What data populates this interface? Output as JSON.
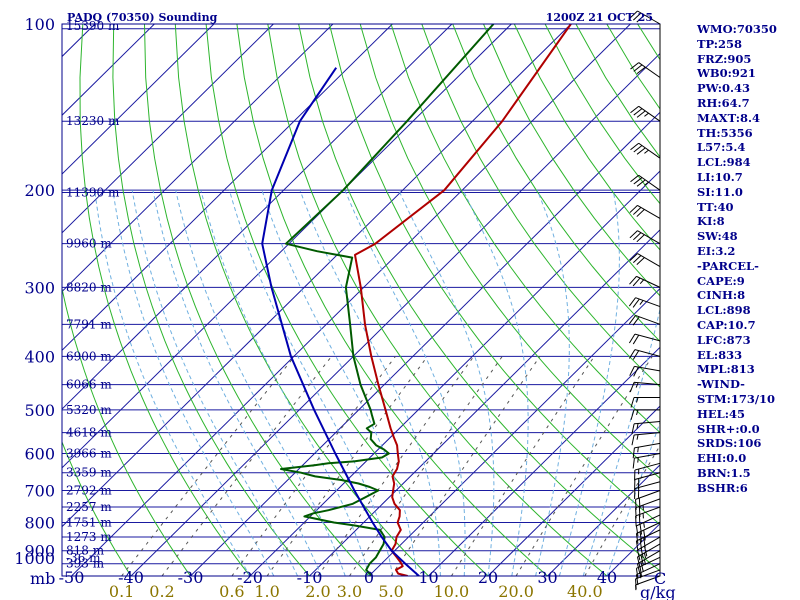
{
  "header": {
    "title": "PADQ (70350) Sounding",
    "time": "1200Z 21 OCT 25"
  },
  "indices": [
    "WMO:70350",
    "TP:258",
    "FRZ:905",
    "WB0:921",
    "PW:0.43",
    "RH:64.7",
    "MAXT:8.4",
    "TH:5356",
    "L57:5.4",
    "LCL:984",
    "LI:10.7",
    "SI:11.0",
    "TT:40",
    "KI:8",
    "SW:48",
    "EI:3.2",
    "-PARCEL-",
    "CAPE:9",
    "CINH:8",
    "LCL:898",
    "CAP:10.7",
    "LFC:873",
    "EL:833",
    "MPL:813",
    "-WIND-",
    "STM:173/10",
    "HEL:45",
    "SHR+:0.0",
    "SRDS:106",
    "EHI:0.0",
    "BRN:1.5",
    "BSHR:6"
  ],
  "colors": {
    "frame": "#00008b",
    "isobar": "#1a1aa0",
    "isotherm": "#1a1aa0",
    "dry_adiabat": "#2db52d",
    "moist_adiabat": "#70b0e0",
    "mixing_ratio": "#555555",
    "temperature": "#b00000",
    "dewpoint": "#005a00",
    "parcel": "#0000b0",
    "wind_barb": "#000000",
    "mixing_ratio_labels": "#8b7500"
  },
  "chart_data": {
    "type": "line",
    "title": "PADQ (70350) Sounding",
    "subtitle": "1200Z 21 OCT 25",
    "pressure_unit": "mb",
    "temperature_unit": "C",
    "mixing_ratio_unit": "g/kg",
    "pressure_range": [
      1000,
      100
    ],
    "temperature_range": [
      -50,
      50
    ],
    "log_pressure_axis": true,
    "pressure_ticks": [
      {
        "p": 100,
        "label": "100"
      },
      {
        "p": 200,
        "label": "200"
      },
      {
        "p": 300,
        "label": "300"
      },
      {
        "p": 400,
        "label": "400"
      },
      {
        "p": 500,
        "label": "500"
      },
      {
        "p": 600,
        "label": "600"
      },
      {
        "p": 700,
        "label": "700"
      },
      {
        "p": 800,
        "label": "800"
      },
      {
        "p": 900,
        "label": "900"
      },
      {
        "p": 1000,
        "label": "1000"
      }
    ],
    "height_ticks": [
      {
        "p": 102,
        "label": "15390 m"
      },
      {
        "p": 150,
        "label": "13230 m"
      },
      {
        "p": 202,
        "label": "11390 m"
      },
      {
        "p": 250,
        "label": "9960 m"
      },
      {
        "p": 300,
        "label": "8820 m"
      },
      {
        "p": 350,
        "label": "7791 m"
      },
      {
        "p": 400,
        "label": "6900 m"
      },
      {
        "p": 450,
        "label": "6066 m"
      },
      {
        "p": 500,
        "label": "5320 m"
      },
      {
        "p": 550,
        "label": "4618 m"
      },
      {
        "p": 600,
        "label": "3966 m"
      },
      {
        "p": 650,
        "label": "3359 m"
      },
      {
        "p": 700,
        "label": "2792 m"
      },
      {
        "p": 750,
        "label": "2257 m"
      },
      {
        "p": 800,
        "label": "1751 m"
      },
      {
        "p": 850,
        "label": "1273 m"
      },
      {
        "p": 900,
        "label": "818 m"
      },
      {
        "p": 950,
        "label": "393 m"
      },
      {
        "p": 1000,
        "label": "-36 m"
      }
    ],
    "temperature_ticks": [
      {
        "t": -50,
        "label": "-50"
      },
      {
        "t": -40,
        "label": "-40"
      },
      {
        "t": -30,
        "label": "-30"
      },
      {
        "t": -20,
        "label": "-20"
      },
      {
        "t": -10,
        "label": "-10"
      },
      {
        "t": 0,
        "label": "0"
      },
      {
        "t": 10,
        "label": "10"
      },
      {
        "t": 20,
        "label": "20"
      },
      {
        "t": 30,
        "label": "30"
      },
      {
        "t": 40,
        "label": "40"
      }
    ],
    "mixing_ratio_ticks": [
      {
        "w": 0.1,
        "label": "0.1"
      },
      {
        "w": 0.2,
        "label": "0.2"
      },
      {
        "w": 0.6,
        "label": "0.6"
      },
      {
        "w": 1.0,
        "label": "1.0"
      },
      {
        "w": 2.0,
        "label": "2.0"
      },
      {
        "w": 3.0,
        "label": "3.0"
      },
      {
        "w": 5.0,
        "label": "5.0"
      },
      {
        "w": 10.0,
        "label": "10.0"
      },
      {
        "w": 20.0,
        "label": "20.0"
      },
      {
        "w": 40.0,
        "label": "40.0"
      }
    ],
    "series": [
      {
        "name": "Temperature",
        "color": "#b00000",
        "points": [
          [
            1000,
            6.5
          ],
          [
            990,
            4.5
          ],
          [
            975,
            3.5
          ],
          [
            960,
            4.0
          ],
          [
            945,
            3.0
          ],
          [
            925,
            1.5
          ],
          [
            900,
            -0.5
          ],
          [
            875,
            -1.0
          ],
          [
            850,
            -2.0
          ],
          [
            825,
            -2.5
          ],
          [
            800,
            -4.3
          ],
          [
            780,
            -5.0
          ],
          [
            760,
            -6.0
          ],
          [
            740,
            -8.0
          ],
          [
            720,
            -9.5
          ],
          [
            700,
            -10.5
          ],
          [
            680,
            -11.5
          ],
          [
            660,
            -13.0
          ],
          [
            640,
            -13.5
          ],
          [
            620,
            -14.5
          ],
          [
            600,
            -16.0
          ],
          [
            580,
            -17.5
          ],
          [
            560,
            -19.5
          ],
          [
            540,
            -21.5
          ],
          [
            500,
            -25.5
          ],
          [
            450,
            -31.0
          ],
          [
            400,
            -37.0
          ],
          [
            350,
            -43.5
          ],
          [
            300,
            -50.5
          ],
          [
            262,
            -57.0
          ],
          [
            250,
            -55.5
          ],
          [
            200,
            -53.0
          ],
          [
            150,
            -55.0
          ],
          [
            100,
            -60.0
          ]
        ]
      },
      {
        "name": "Dewpoint",
        "color": "#005a00",
        "points": [
          [
            1000,
            0.5
          ],
          [
            975,
            -1.5
          ],
          [
            950,
            -2.0
          ],
          [
            925,
            -2.0
          ],
          [
            900,
            -2.5
          ],
          [
            875,
            -3.0
          ],
          [
            850,
            -4.0
          ],
          [
            825,
            -6.0
          ],
          [
            810,
            -11.0
          ],
          [
            800,
            -15.0
          ],
          [
            780,
            -21.0
          ],
          [
            770,
            -20.0
          ],
          [
            760,
            -18.0
          ],
          [
            740,
            -15.0
          ],
          [
            720,
            -14.0
          ],
          [
            700,
            -13.0
          ],
          [
            690,
            -15.0
          ],
          [
            680,
            -17.5
          ],
          [
            670,
            -21.0
          ],
          [
            660,
            -26.0
          ],
          [
            650,
            -29.0
          ],
          [
            640,
            -33.0
          ],
          [
            630,
            -28.0
          ],
          [
            625,
            -26.0
          ],
          [
            620,
            -22.0
          ],
          [
            610,
            -18.0
          ],
          [
            600,
            -17.5
          ],
          [
            590,
            -19.0
          ],
          [
            580,
            -21.0
          ],
          [
            565,
            -23.0
          ],
          [
            550,
            -24.0
          ],
          [
            540,
            -25.5
          ],
          [
            530,
            -25.0
          ],
          [
            510,
            -27.0
          ],
          [
            500,
            -28.0
          ],
          [
            450,
            -34.0
          ],
          [
            400,
            -40.0
          ],
          [
            350,
            -46.0
          ],
          [
            300,
            -53.0
          ],
          [
            265,
            -57.0
          ],
          [
            258,
            -64.0
          ],
          [
            250,
            -70.5
          ],
          [
            200,
            -70.0
          ],
          [
            150,
            -71.0
          ],
          [
            100,
            -73.0
          ]
        ]
      },
      {
        "name": "Parcel",
        "color": "#0000b0",
        "points": [
          [
            1000,
            8.4
          ],
          [
            950,
            4.0
          ],
          [
            900,
            -0.5
          ],
          [
            850,
            -4.5
          ],
          [
            800,
            -8.5
          ],
          [
            700,
            -17.0
          ],
          [
            600,
            -26.5
          ],
          [
            500,
            -37.5
          ],
          [
            400,
            -50.5
          ],
          [
            300,
            -65.5
          ],
          [
            250,
            -74.5
          ],
          [
            200,
            -82.0
          ],
          [
            150,
            -89.0
          ],
          [
            120,
            -92.0
          ]
        ]
      }
    ],
    "winds": [
      {
        "p": 1000,
        "dir": 250,
        "spd": 5
      },
      {
        "p": 975,
        "dir": 250,
        "spd": 10
      },
      {
        "p": 950,
        "dir": 245,
        "spd": 15
      },
      {
        "p": 925,
        "dir": 245,
        "spd": 20
      },
      {
        "p": 900,
        "dir": 240,
        "spd": 25
      },
      {
        "p": 875,
        "dir": 240,
        "spd": 25
      },
      {
        "p": 850,
        "dir": 240,
        "spd": 30
      },
      {
        "p": 825,
        "dir": 245,
        "spd": 30
      },
      {
        "p": 800,
        "dir": 245,
        "spd": 30
      },
      {
        "p": 775,
        "dir": 245,
        "spd": 25
      },
      {
        "p": 750,
        "dir": 250,
        "spd": 25
      },
      {
        "p": 725,
        "dir": 250,
        "spd": 25
      },
      {
        "p": 700,
        "dir": 250,
        "spd": 20
      },
      {
        "p": 675,
        "dir": 255,
        "spd": 20
      },
      {
        "p": 650,
        "dir": 255,
        "spd": 20
      },
      {
        "p": 625,
        "dir": 255,
        "spd": 15
      },
      {
        "p": 600,
        "dir": 260,
        "spd": 15
      },
      {
        "p": 575,
        "dir": 260,
        "spd": 15
      },
      {
        "p": 550,
        "dir": 265,
        "spd": 15
      },
      {
        "p": 525,
        "dir": 265,
        "spd": 15
      },
      {
        "p": 500,
        "dir": 270,
        "spd": 15
      },
      {
        "p": 475,
        "dir": 270,
        "spd": 15
      },
      {
        "p": 450,
        "dir": 275,
        "spd": 15
      },
      {
        "p": 425,
        "dir": 280,
        "spd": 20
      },
      {
        "p": 400,
        "dir": 285,
        "spd": 20
      },
      {
        "p": 375,
        "dir": 285,
        "spd": 20
      },
      {
        "p": 350,
        "dir": 290,
        "spd": 20
      },
      {
        "p": 325,
        "dir": 290,
        "spd": 25
      },
      {
        "p": 300,
        "dir": 295,
        "spd": 25
      },
      {
        "p": 275,
        "dir": 300,
        "spd": 30
      },
      {
        "p": 250,
        "dir": 300,
        "spd": 30
      },
      {
        "p": 225,
        "dir": 300,
        "spd": 30
      },
      {
        "p": 200,
        "dir": 305,
        "spd": 35
      },
      {
        "p": 175,
        "dir": 305,
        "spd": 35
      },
      {
        "p": 150,
        "dir": 305,
        "spd": 35
      },
      {
        "p": 125,
        "dir": 305,
        "spd": 30
      },
      {
        "p": 100,
        "dir": 300,
        "spd": 30
      }
    ]
  }
}
